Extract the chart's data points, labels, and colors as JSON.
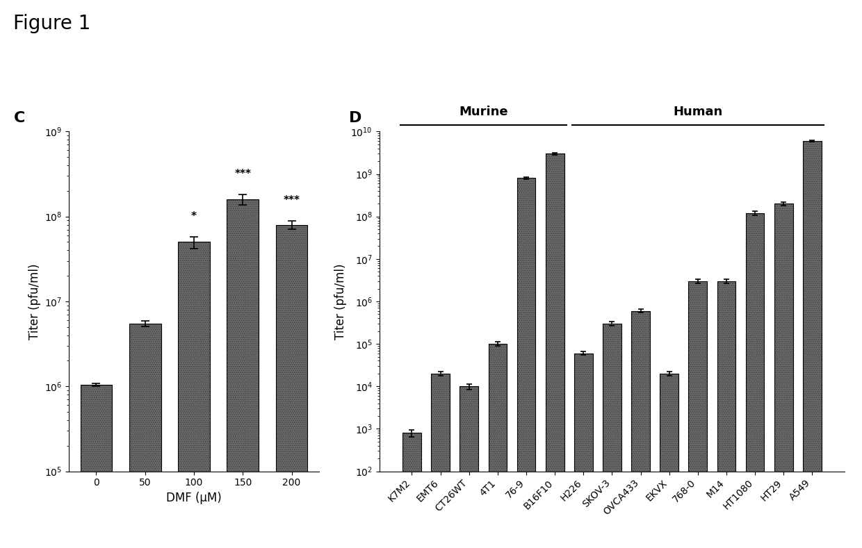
{
  "title": "Figure 1",
  "panel_c": {
    "label": "C",
    "xlabel": "DMF (μM)",
    "ylabel": "Titer (pfu/ml)",
    "categories": [
      "0",
      "50",
      "100",
      "150",
      "200"
    ],
    "values": [
      1050000.0,
      5500000.0,
      50000000.0,
      160000000.0,
      80000000.0
    ],
    "errors": [
      40000.0,
      400000.0,
      8000000.0,
      22000000.0,
      9000000.0
    ],
    "significance": [
      "",
      "",
      "*",
      "***",
      "***"
    ],
    "ylim_low": 100000.0,
    "ylim_high": 1000000000.0,
    "yticks": [
      100000.0,
      1000000.0,
      10000000.0,
      100000000.0,
      1000000000.0
    ],
    "bar_color": "#707070",
    "bar_width": 0.65
  },
  "panel_d": {
    "label": "D",
    "ylabel": "Titer (pfu/ml)",
    "categories": [
      "K7M2",
      "EMT6",
      "CT26WT",
      "4T1",
      "76-9",
      "B16F10",
      "H226",
      "SKOV-3",
      "OVCA433",
      "EKVX",
      "768-0",
      "M14",
      "HT1080",
      "HT29",
      "A549"
    ],
    "values": [
      800.0,
      20000.0,
      10000.0,
      100000.0,
      800000000.0,
      3000000000.0,
      60000.0,
      300000.0,
      600000.0,
      20000.0,
      3000000.0,
      3000000.0,
      120000000.0,
      120000000.0,
      6000000000.0
    ],
    "errors": [
      150.0,
      2000.0,
      1500.0,
      12000.0,
      50000000.0,
      150000000.0,
      6000.0,
      30000.0,
      60000.0,
      2000.0,
      300000.0,
      300000.0,
      15000000.0,
      18000000.0,
      300000000.0
    ],
    "murine_count": 6,
    "ylim_low": 100.0,
    "ylim_high": 10000000000.0,
    "yticks": [
      100.0,
      1000.0,
      10000.0,
      100000.0,
      1000000.0,
      10000000.0,
      100000000.0,
      1000000000.0,
      10000000000.0
    ],
    "bar_color": "#707070",
    "bar_width": 0.65,
    "murine_label": "Murine",
    "human_label": "Human"
  },
  "background_color": "#ffffff",
  "figure_title_fontsize": 20,
  "panel_label_fontsize": 16,
  "axis_label_fontsize": 12,
  "tick_label_fontsize": 10,
  "sig_fontsize": 11
}
